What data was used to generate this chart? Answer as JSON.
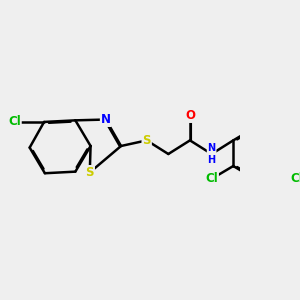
{
  "background_color": "#efefef",
  "bond_color": "#000000",
  "bond_width": 1.8,
  "atom_colors": {
    "S": "#cccc00",
    "N": "#0000ff",
    "O": "#ff0000",
    "Cl": "#00bb00"
  },
  "font_size": 8.5,
  "fig_width": 3.0,
  "fig_height": 3.0,
  "dpi": 100,
  "xlim": [
    0,
    10
  ],
  "ylim": [
    0,
    10
  ]
}
